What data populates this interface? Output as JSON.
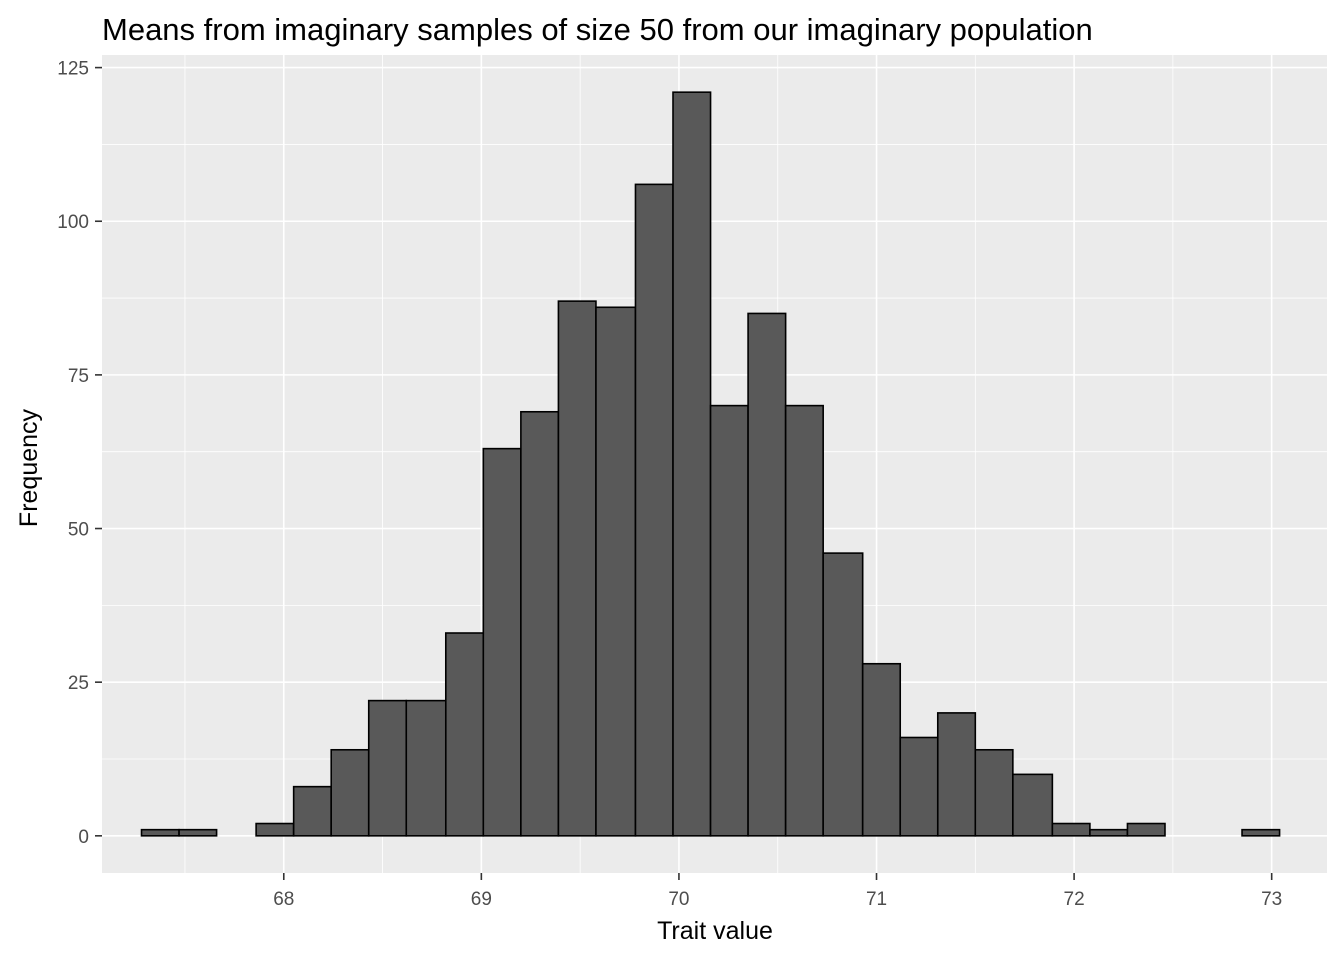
{
  "chart_data": {
    "type": "bar",
    "title": "Means from imaginary samples of size 50 from our imaginary population",
    "xlabel": "Trait value",
    "ylabel": "Frequency",
    "xlim": [
      67.08,
      73.28
    ],
    "ylim": [
      -6.05,
      127.05
    ],
    "x_ticks": [
      68,
      69,
      70,
      71,
      72,
      73
    ],
    "y_ticks": [
      0,
      25,
      50,
      75,
      100,
      125
    ],
    "grid": true,
    "bins": [
      {
        "x0": 67.28,
        "x1": 67.47,
        "count": 1
      },
      {
        "x0": 67.47,
        "x1": 67.66,
        "count": 1
      },
      {
        "x0": 67.66,
        "x1": 67.86,
        "count": 0
      },
      {
        "x0": 67.86,
        "x1": 68.05,
        "count": 2
      },
      {
        "x0": 68.05,
        "x1": 68.24,
        "count": 8
      },
      {
        "x0": 68.24,
        "x1": 68.43,
        "count": 14
      },
      {
        "x0": 68.43,
        "x1": 68.62,
        "count": 22
      },
      {
        "x0": 68.62,
        "x1": 68.82,
        "count": 22
      },
      {
        "x0": 68.82,
        "x1": 69.01,
        "count": 33
      },
      {
        "x0": 69.01,
        "x1": 69.2,
        "count": 63
      },
      {
        "x0": 69.2,
        "x1": 69.39,
        "count": 69
      },
      {
        "x0": 69.39,
        "x1": 69.58,
        "count": 87
      },
      {
        "x0": 69.58,
        "x1": 69.78,
        "count": 86
      },
      {
        "x0": 69.78,
        "x1": 69.97,
        "count": 106
      },
      {
        "x0": 69.97,
        "x1": 70.16,
        "count": 121
      },
      {
        "x0": 70.16,
        "x1": 70.35,
        "count": 70
      },
      {
        "x0": 70.35,
        "x1": 70.54,
        "count": 85
      },
      {
        "x0": 70.54,
        "x1": 70.73,
        "count": 70
      },
      {
        "x0": 70.73,
        "x1": 70.93,
        "count": 46
      },
      {
        "x0": 70.93,
        "x1": 71.12,
        "count": 28
      },
      {
        "x0": 71.12,
        "x1": 71.31,
        "count": 16
      },
      {
        "x0": 71.31,
        "x1": 71.5,
        "count": 20
      },
      {
        "x0": 71.5,
        "x1": 71.69,
        "count": 14
      },
      {
        "x0": 71.69,
        "x1": 71.89,
        "count": 10
      },
      {
        "x0": 71.89,
        "x1": 72.08,
        "count": 2
      },
      {
        "x0": 72.08,
        "x1": 72.27,
        "count": 1
      },
      {
        "x0": 72.27,
        "x1": 72.46,
        "count": 2
      },
      {
        "x0": 72.46,
        "x1": 72.65,
        "count": 0
      },
      {
        "x0": 72.65,
        "x1": 72.85,
        "count": 0
      },
      {
        "x0": 72.85,
        "x1": 73.04,
        "count": 1
      }
    ],
    "colors": {
      "bar_fill": "#595959",
      "bar_outline": "#000000",
      "panel_background": "#ebebeb",
      "grid": "#ffffff"
    }
  }
}
